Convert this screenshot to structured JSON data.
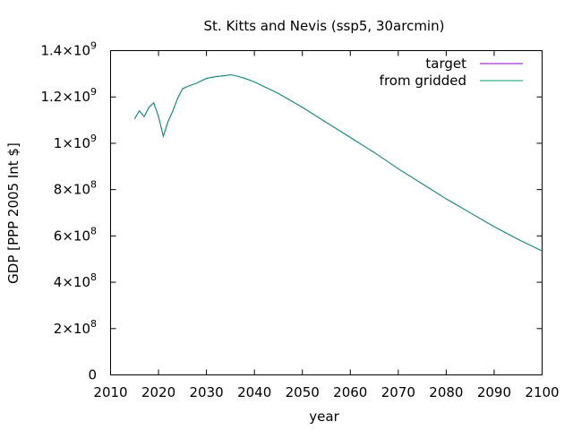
{
  "chart_data": {
    "type": "line",
    "title": "St. Kitts and Nevis (ssp5, 30arcmin)",
    "xlabel": "year",
    "ylabel": "GDP [PPP 2005 Int $]",
    "xlim": [
      2010,
      2100
    ],
    "ylim": [
      0,
      1400000000
    ],
    "grid": false,
    "legend_position": "top-right",
    "x_ticks": [
      {
        "value": 2010,
        "label": "2010"
      },
      {
        "value": 2020,
        "label": "2020"
      },
      {
        "value": 2030,
        "label": "2030"
      },
      {
        "value": 2040,
        "label": "2040"
      },
      {
        "value": 2050,
        "label": "2050"
      },
      {
        "value": 2060,
        "label": "2060"
      },
      {
        "value": 2070,
        "label": "2070"
      },
      {
        "value": 2080,
        "label": "2080"
      },
      {
        "value": 2090,
        "label": "2090"
      },
      {
        "value": 2100,
        "label": "2100"
      }
    ],
    "y_ticks": [
      {
        "value": 0,
        "mantissa": "0",
        "exponent": ""
      },
      {
        "value": 200000000,
        "mantissa": "2×10",
        "exponent": "8"
      },
      {
        "value": 400000000,
        "mantissa": "4×10",
        "exponent": "8"
      },
      {
        "value": 600000000,
        "mantissa": "6×10",
        "exponent": "8"
      },
      {
        "value": 800000000,
        "mantissa": "8×10",
        "exponent": "8"
      },
      {
        "value": 1000000000,
        "mantissa": "1×10",
        "exponent": "9"
      },
      {
        "value": 1200000000,
        "mantissa": "1.2×10",
        "exponent": "9"
      },
      {
        "value": 1400000000,
        "mantissa": "1.4×10",
        "exponent": "9"
      }
    ],
    "x": [
      2015,
      2016,
      2017,
      2018,
      2019,
      2020,
      2021,
      2022,
      2023,
      2024,
      2025,
      2026,
      2028,
      2030,
      2032,
      2034,
      2035,
      2036,
      2038,
      2040,
      2045,
      2050,
      2055,
      2060,
      2065,
      2070,
      2075,
      2080,
      2085,
      2090,
      2095,
      2100
    ],
    "series": [
      {
        "name": "target",
        "color": "#9400d3",
        "values": [
          1105000000,
          1140000000,
          1115000000,
          1155000000,
          1175000000,
          1115000000,
          1030000000,
          1095000000,
          1140000000,
          1195000000,
          1235000000,
          1245000000,
          1260000000,
          1280000000,
          1288000000,
          1292000000,
          1296000000,
          1292000000,
          1280000000,
          1265000000,
          1215000000,
          1155000000,
          1090000000,
          1025000000,
          960000000,
          890000000,
          825000000,
          760000000,
          700000000,
          640000000,
          585000000,
          535000000
        ]
      },
      {
        "name": "from gridded",
        "color": "#009e73",
        "values": [
          1105000000,
          1140000000,
          1115000000,
          1155000000,
          1175000000,
          1115000000,
          1030000000,
          1095000000,
          1140000000,
          1195000000,
          1235000000,
          1245000000,
          1260000000,
          1280000000,
          1288000000,
          1292000000,
          1296000000,
          1292000000,
          1280000000,
          1265000000,
          1215000000,
          1155000000,
          1090000000,
          1025000000,
          960000000,
          890000000,
          825000000,
          760000000,
          700000000,
          640000000,
          585000000,
          535000000
        ]
      }
    ]
  }
}
